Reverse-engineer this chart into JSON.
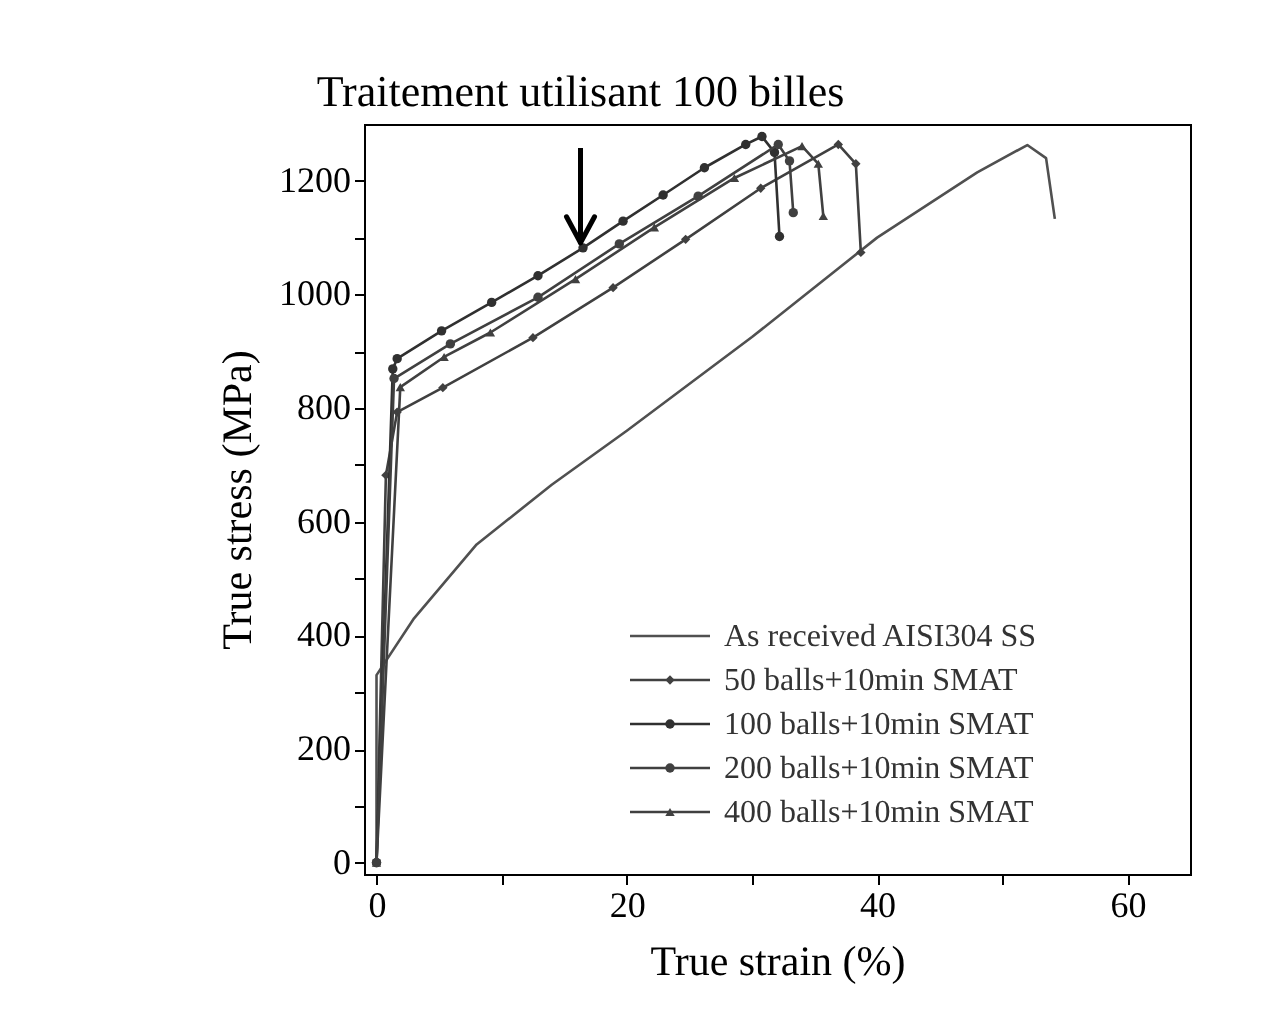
{
  "chart_data": {
    "type": "line",
    "xlabel": "True strain (%)",
    "ylabel": "True stress (MPa)",
    "xlim": [
      -1,
      65
    ],
    "ylim": [
      -20,
      1300
    ],
    "xticks": [
      0,
      {
        "value": 10,
        "label": null
      },
      20,
      {
        "value": 30,
        "label": null
      },
      40,
      {
        "value": 50,
        "label": null
      },
      60
    ],
    "yticks": [
      0,
      {
        "value": 100,
        "label": null
      },
      200,
      {
        "value": 300,
        "label": null
      },
      400,
      {
        "value": 500,
        "label": null
      },
      600,
      {
        "value": 700,
        "label": null
      },
      800,
      {
        "value": 900,
        "label": null
      },
      1000,
      {
        "value": 1100,
        "label": null
      },
      1200
    ],
    "grid": false,
    "legend": "bottom right",
    "line_style": "solid",
    "annotations": [
      {
        "text": "Traitement utilisant 100 billes",
        "x": 16.3,
        "y": 1091
      }
    ],
    "series": [
      {
        "name": "As received AISI304 SS",
        "color": "#505050",
        "marker": "none",
        "x": [
          0,
          0,
          3,
          8,
          14,
          20,
          30,
          40,
          48,
          52,
          53.5,
          54.2
        ],
        "values": [
          0,
          330,
          430,
          560,
          665,
          760,
          925,
          1100,
          1215,
          1263,
          1240,
          1133
        ]
      },
      {
        "name": "50 balls+10min SMAT",
        "color": "#404040",
        "marker": "diamond",
        "x": [
          0,
          0.75,
          1.65,
          5.3,
          12.5,
          18.9,
          24.7,
          30.7,
          36.9,
          38.3,
          38.7
        ],
        "values": [
          0,
          682,
          793,
          836,
          924,
          1012,
          1097,
          1187,
          1264,
          1230,
          1074
        ]
      },
      {
        "name": "100 balls+10min SMAT",
        "color": "#303030",
        "marker": "circle",
        "x": [
          0,
          1.3,
          1.65,
          5.2,
          9.2,
          12.9,
          16.5,
          19.7,
          22.9,
          26.2,
          29.5,
          30.8,
          31.8,
          32.2
        ],
        "values": [
          0,
          869,
          887,
          936,
          986,
          1033,
          1082,
          1129,
          1175,
          1223,
          1264,
          1278,
          1250,
          1102
        ]
      },
      {
        "name": "200 balls+10min SMAT",
        "color": "#404040",
        "marker": "circle",
        "x": [
          0,
          1.4,
          5.9,
          12.9,
          19.4,
          25.7,
          32.1,
          33.0,
          33.3
        ],
        "values": [
          0,
          852,
          913,
          995,
          1089,
          1173,
          1264,
          1235,
          1144
        ]
      },
      {
        "name": "400 balls+10min SMAT",
        "color": "#404040",
        "marker": "triangle",
        "x": [
          0,
          1.9,
          5.4,
          9.1,
          15.9,
          22.2,
          28.6,
          34.0,
          35.3,
          35.7
        ],
        "values": [
          0,
          837,
          890,
          933,
          1027,
          1118,
          1205,
          1261,
          1230,
          1138
        ]
      }
    ]
  }
}
